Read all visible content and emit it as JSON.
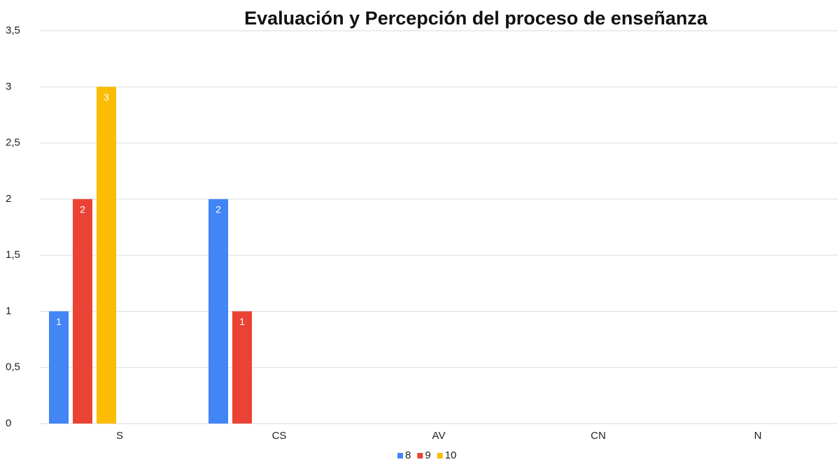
{
  "chart_data": {
    "type": "bar",
    "title": "Evaluación y Percepción del proceso de enseñanza",
    "categories": [
      "S",
      "CS",
      "AV",
      "CN",
      "N"
    ],
    "series": [
      {
        "name": "8",
        "color": "#4285f4",
        "values": [
          1,
          2,
          0,
          0,
          0
        ]
      },
      {
        "name": "9",
        "color": "#ea4335",
        "values": [
          2,
          1,
          0,
          0,
          0
        ]
      },
      {
        "name": "10",
        "color": "#fbbc04",
        "values": [
          3,
          0,
          0,
          0,
          0
        ]
      }
    ],
    "ylim": [
      0,
      3.5
    ],
    "yticks": [
      0,
      {
        "value": 0.5,
        "label": "0,5"
      },
      1,
      {
        "value": 1.5,
        "label": "1,5"
      },
      2,
      {
        "value": 2.5,
        "label": "2,5"
      },
      3,
      {
        "value": 3.5,
        "label": "3,5"
      }
    ],
    "grid": true,
    "legend": "bottom"
  }
}
